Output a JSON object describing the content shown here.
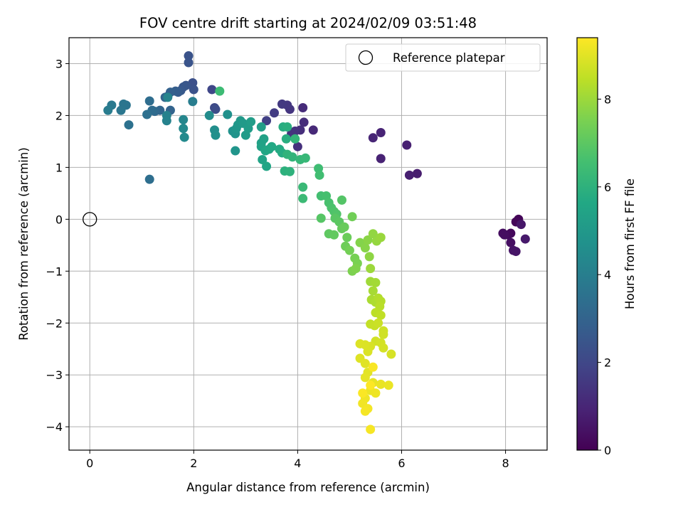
{
  "chart_data": {
    "type": "scatter",
    "title": "FOV centre drift starting at 2024/02/09 03:51:48",
    "xlabel": "Angular distance from reference (arcmin)",
    "ylabel": "Rotation from reference (arcmin)",
    "xlim": [
      -0.4,
      8.8
    ],
    "ylim": [
      -4.45,
      3.5
    ],
    "xticks": [
      0,
      2,
      4,
      6,
      8
    ],
    "yticks": [
      -4,
      -3,
      -2,
      -1,
      0,
      1,
      2,
      3
    ],
    "xtick_labels": [
      "0",
      "2",
      "4",
      "6",
      "8"
    ],
    "ytick_labels": [
      "−4",
      "−3",
      "−2",
      "−1",
      "0",
      "1",
      "2",
      "3"
    ],
    "grid": true,
    "colormap": "viridis",
    "colorbar": {
      "label": "Hours from first FF file",
      "range": [
        0,
        9.4
      ],
      "ticks": [
        0,
        2,
        4,
        6,
        8
      ],
      "tick_labels": [
        "0",
        "2",
        "4",
        "6",
        "8"
      ]
    },
    "legend": {
      "position": "top-right",
      "entries": [
        "Reference platepar"
      ]
    },
    "reference_point": {
      "name": "Reference platepar",
      "x": 0,
      "y": 0,
      "marker": "open-circle"
    },
    "series": [
      {
        "points": [
          [
            8.25,
            0.0,
            0.1
          ],
          [
            8.2,
            -0.05,
            0.15
          ],
          [
            8.1,
            -0.27,
            0.2
          ],
          [
            8.05,
            -0.3,
            0.25
          ],
          [
            7.95,
            -0.27,
            0.3
          ],
          [
            7.98,
            -0.3,
            0.35
          ],
          [
            8.1,
            -0.45,
            0.4
          ],
          [
            8.15,
            -0.6,
            0.5
          ],
          [
            8.2,
            -0.62,
            0.55
          ],
          [
            8.3,
            -0.1,
            0.6
          ],
          [
            8.38,
            -0.38,
            0.65
          ],
          [
            6.3,
            0.88,
            0.75
          ],
          [
            6.15,
            0.85,
            0.8
          ],
          [
            6.1,
            1.43,
            0.85
          ],
          [
            5.6,
            1.17,
            0.9
          ],
          [
            5.6,
            1.67,
            0.95
          ],
          [
            5.45,
            1.57,
            1.0
          ],
          [
            4.3,
            1.72,
            1.1
          ],
          [
            4.1,
            2.15,
            1.15
          ],
          [
            4.12,
            1.87,
            1.2
          ],
          [
            4.05,
            1.72,
            1.25
          ],
          [
            4.0,
            1.4,
            1.3
          ],
          [
            3.95,
            1.7,
            1.35
          ],
          [
            3.88,
            1.65,
            1.4
          ],
          [
            3.85,
            2.12,
            1.45
          ],
          [
            3.8,
            2.2,
            1.5
          ],
          [
            3.7,
            2.22,
            1.55
          ],
          [
            3.55,
            2.05,
            1.65
          ],
          [
            3.4,
            1.9,
            1.75
          ],
          [
            2.35,
            2.5,
            2.0
          ],
          [
            2.4,
            2.15,
            2.1
          ],
          [
            2.42,
            2.12,
            2.2
          ],
          [
            1.98,
            2.63,
            2.3
          ],
          [
            2.0,
            2.5,
            2.35
          ],
          [
            1.9,
            3.15,
            2.4
          ],
          [
            1.9,
            3.02,
            2.45
          ],
          [
            1.85,
            2.58,
            2.5
          ],
          [
            1.8,
            2.55,
            2.55
          ],
          [
            1.75,
            2.48,
            2.6
          ],
          [
            1.7,
            2.45,
            2.7
          ],
          [
            1.65,
            2.47,
            2.8
          ],
          [
            1.55,
            2.45,
            2.9
          ],
          [
            1.5,
            2.37,
            2.95
          ],
          [
            1.55,
            2.1,
            3.0
          ],
          [
            1.45,
            2.35,
            3.05
          ],
          [
            1.35,
            2.1,
            3.1
          ],
          [
            1.25,
            2.08,
            3.2
          ],
          [
            1.2,
            2.1,
            3.3
          ],
          [
            1.15,
            2.28,
            3.35
          ],
          [
            1.15,
            0.77,
            3.4
          ],
          [
            1.1,
            2.02,
            3.45
          ],
          [
            0.75,
            1.82,
            3.5
          ],
          [
            0.7,
            2.2,
            3.6
          ],
          [
            0.65,
            2.22,
            3.65
          ],
          [
            0.6,
            2.1,
            3.7
          ],
          [
            0.42,
            2.2,
            3.8
          ],
          [
            0.35,
            2.1,
            3.9
          ],
          [
            1.98,
            2.27,
            3.95
          ],
          [
            1.48,
            2.0,
            4.1
          ],
          [
            1.48,
            1.9,
            4.15
          ],
          [
            1.5,
            2.35,
            4.2
          ],
          [
            1.8,
            1.92,
            4.3
          ],
          [
            1.8,
            1.75,
            4.4
          ],
          [
            1.82,
            1.58,
            4.45
          ],
          [
            2.3,
            2.0,
            4.5
          ],
          [
            2.4,
            1.72,
            4.6
          ],
          [
            2.42,
            1.62,
            4.65
          ],
          [
            2.65,
            2.02,
            4.7
          ],
          [
            2.75,
            1.7,
            4.75
          ],
          [
            2.8,
            1.65,
            4.8
          ],
          [
            2.8,
            1.32,
            4.85
          ],
          [
            2.82,
            1.75,
            4.9
          ],
          [
            2.85,
            1.82,
            4.95
          ],
          [
            2.9,
            1.9,
            5.0
          ],
          [
            2.95,
            1.85,
            5.05
          ],
          [
            3.0,
            1.62,
            5.1
          ],
          [
            3.05,
            1.75,
            5.15
          ],
          [
            3.1,
            1.88,
            5.2
          ],
          [
            3.3,
            1.78,
            5.25
          ],
          [
            3.3,
            1.47,
            5.3
          ],
          [
            3.35,
            1.55,
            5.35
          ],
          [
            3.3,
            1.4,
            5.4
          ],
          [
            3.32,
            1.15,
            5.45
          ],
          [
            3.4,
            1.02,
            5.5
          ],
          [
            3.38,
            1.32,
            5.55
          ],
          [
            3.45,
            1.35,
            5.6
          ],
          [
            3.5,
            1.4,
            5.65
          ],
          [
            3.65,
            1.35,
            5.7
          ],
          [
            3.7,
            1.28,
            5.75
          ],
          [
            3.72,
            1.78,
            5.8
          ],
          [
            3.78,
            1.55,
            5.85
          ],
          [
            3.8,
            1.78,
            5.9
          ],
          [
            3.75,
            0.93,
            5.95
          ],
          [
            3.85,
            0.92,
            6.0
          ],
          [
            3.8,
            1.25,
            6.05
          ],
          [
            3.9,
            1.2,
            6.1
          ],
          [
            3.95,
            1.55,
            6.15
          ],
          [
            4.05,
            1.15,
            6.2
          ],
          [
            4.15,
            1.18,
            6.25
          ],
          [
            4.1,
            0.62,
            6.3
          ],
          [
            4.1,
            0.4,
            6.35
          ],
          [
            2.5,
            2.47,
            6.4
          ],
          [
            4.4,
            0.98,
            6.45
          ],
          [
            4.42,
            0.85,
            6.5
          ],
          [
            4.45,
            0.45,
            6.55
          ],
          [
            4.55,
            0.45,
            6.6
          ],
          [
            4.6,
            0.32,
            6.65
          ],
          [
            4.65,
            0.22,
            6.7
          ],
          [
            4.7,
            0.15,
            6.75
          ],
          [
            4.75,
            0.1,
            6.8
          ],
          [
            4.85,
            0.37,
            6.85
          ],
          [
            4.45,
            0.02,
            6.9
          ],
          [
            4.72,
            0.02,
            6.95
          ],
          [
            4.8,
            -0.05,
            7.0
          ],
          [
            4.6,
            -0.28,
            7.05
          ],
          [
            4.7,
            -0.3,
            7.1
          ],
          [
            4.85,
            -0.18,
            7.15
          ],
          [
            4.9,
            -0.15,
            7.2
          ],
          [
            4.95,
            -0.35,
            7.25
          ],
          [
            4.92,
            -0.52,
            7.3
          ],
          [
            5.05,
            0.05,
            7.35
          ],
          [
            5.0,
            -0.6,
            7.4
          ],
          [
            5.1,
            -0.75,
            7.45
          ],
          [
            5.15,
            -0.85,
            7.5
          ],
          [
            5.05,
            -1.0,
            7.55
          ],
          [
            5.12,
            -0.95,
            7.6
          ],
          [
            5.2,
            -0.45,
            7.65
          ],
          [
            5.3,
            -0.55,
            7.7
          ],
          [
            5.35,
            -0.4,
            7.75
          ],
          [
            5.38,
            -0.72,
            7.8
          ],
          [
            5.45,
            -0.28,
            7.85
          ],
          [
            5.52,
            -0.42,
            7.9
          ],
          [
            5.6,
            -0.35,
            7.95
          ],
          [
            5.4,
            -0.95,
            8.0
          ],
          [
            5.4,
            -1.2,
            8.05
          ],
          [
            5.5,
            -1.22,
            8.1
          ],
          [
            5.45,
            -1.38,
            8.15
          ],
          [
            5.42,
            -1.55,
            8.2
          ],
          [
            5.5,
            -1.6,
            8.25
          ],
          [
            5.55,
            -1.52,
            8.3
          ],
          [
            5.6,
            -1.58,
            8.35
          ],
          [
            5.58,
            -1.68,
            8.4
          ],
          [
            5.5,
            -1.8,
            8.45
          ],
          [
            5.6,
            -1.85,
            8.5
          ],
          [
            5.4,
            -2.02,
            8.55
          ],
          [
            5.48,
            -2.05,
            8.6
          ],
          [
            5.55,
            -2.0,
            8.65
          ],
          [
            5.65,
            -2.15,
            8.7
          ],
          [
            5.65,
            -2.22,
            8.72
          ],
          [
            5.5,
            -2.35,
            8.75
          ],
          [
            5.6,
            -2.38,
            8.78
          ],
          [
            5.65,
            -2.48,
            8.8
          ],
          [
            5.8,
            -2.6,
            8.82
          ],
          [
            5.4,
            -2.45,
            8.85
          ],
          [
            5.35,
            -2.55,
            8.88
          ],
          [
            5.3,
            -2.42,
            8.9
          ],
          [
            5.2,
            -2.4,
            8.92
          ],
          [
            5.2,
            -2.68,
            8.95
          ],
          [
            5.3,
            -2.78,
            8.98
          ],
          [
            5.35,
            -2.95,
            9.0
          ],
          [
            5.3,
            -3.05,
            9.05
          ],
          [
            5.45,
            -3.15,
            9.08
          ],
          [
            5.6,
            -3.18,
            9.1
          ],
          [
            5.75,
            -3.2,
            9.12
          ],
          [
            5.4,
            -3.3,
            9.15
          ],
          [
            5.5,
            -3.35,
            9.18
          ],
          [
            5.3,
            -3.45,
            9.2
          ],
          [
            5.25,
            -3.55,
            9.22
          ],
          [
            5.35,
            -3.65,
            9.25
          ],
          [
            5.3,
            -3.7,
            9.28
          ],
          [
            5.4,
            -4.05,
            9.3
          ],
          [
            5.45,
            -2.85,
            9.32
          ],
          [
            5.25,
            -3.35,
            9.35
          ],
          [
            5.4,
            -3.2,
            9.38
          ]
        ]
      }
    ]
  }
}
